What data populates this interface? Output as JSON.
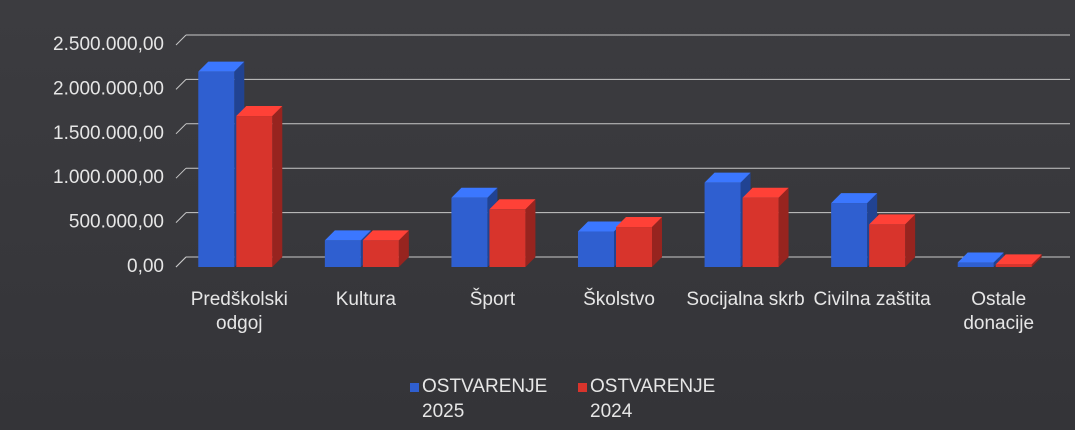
{
  "chart_data": {
    "type": "bar",
    "categories": [
      "Predškolski odgoj",
      "Kultura",
      "Šport",
      "Školstvo",
      "Socijalna skrb",
      "Civilna zaštita",
      "Ostale donacije"
    ],
    "series": [
      {
        "name": "OSTVARENJE 2025",
        "color": "#2f5fd0",
        "values": [
          2200000,
          300000,
          780000,
          400000,
          950000,
          720000,
          50000
        ]
      },
      {
        "name": "OSTVARENJE 2024",
        "color": "#d8342c",
        "values": [
          1700000,
          300000,
          650000,
          450000,
          780000,
          480000,
          30000
        ]
      }
    ],
    "ylim": [
      0,
      2500000
    ],
    "yticks": [
      {
        "value": 0,
        "label": "0,00"
      },
      {
        "value": 500000,
        "label": "500.000,00"
      },
      {
        "value": 1000000,
        "label": "1.000.000,00"
      },
      {
        "value": 1500000,
        "label": "1.500.000,00"
      },
      {
        "value": 2000000,
        "label": "2.000.000,00"
      },
      {
        "value": 2500000,
        "label": "2.500.000,00"
      }
    ],
    "grid": true,
    "legend": "bottom"
  }
}
